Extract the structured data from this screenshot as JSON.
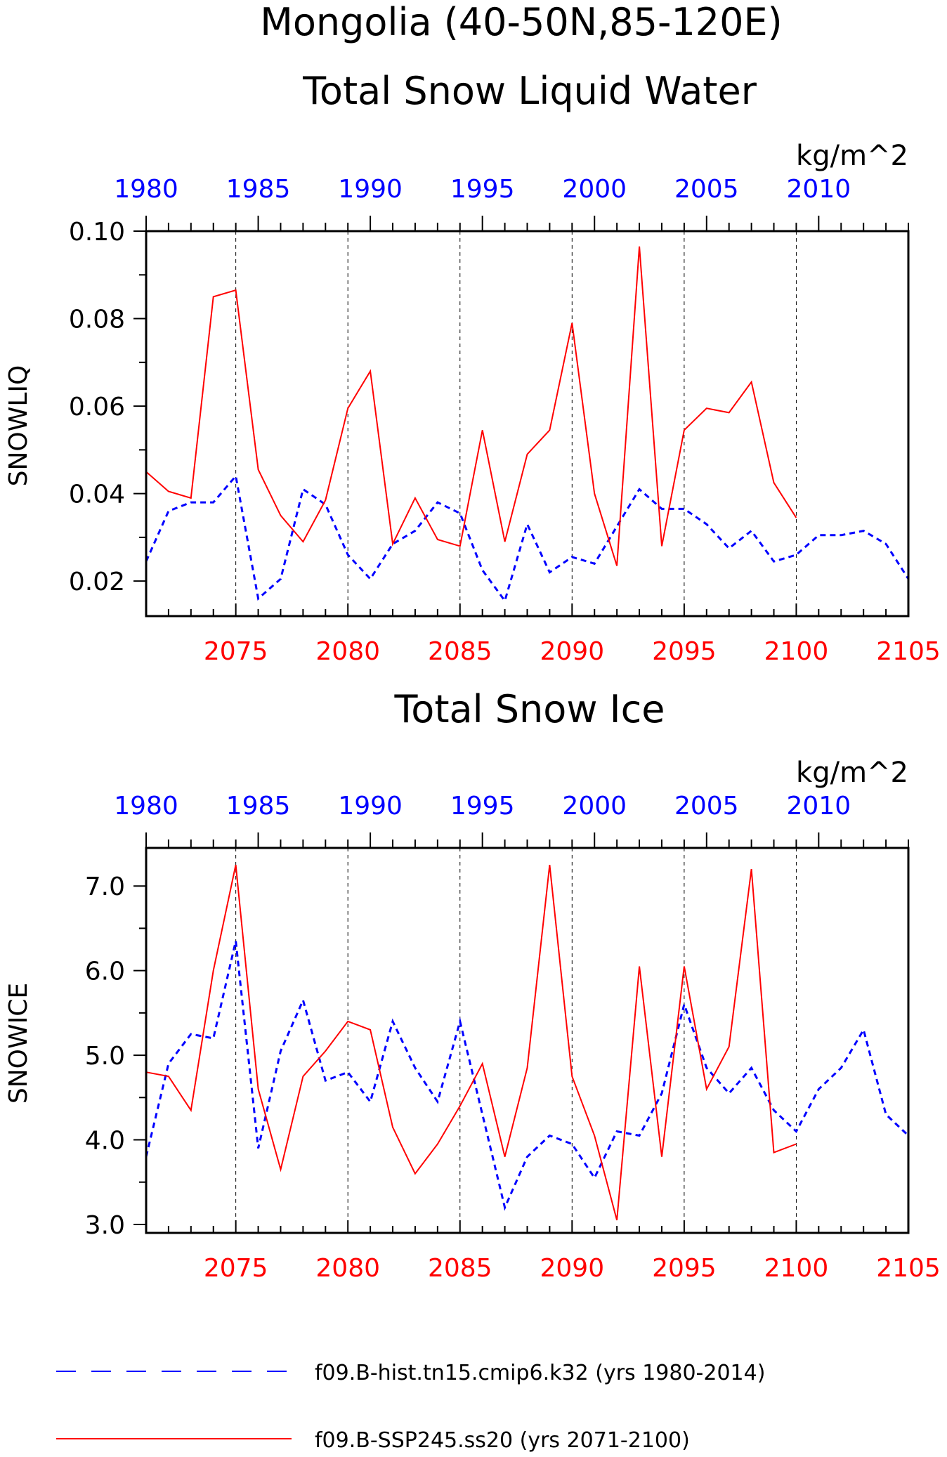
{
  "figure": {
    "title_line1": "Mongolia (40-50N,85-120E)",
    "colors": {
      "hist": "#0000ff",
      "ssp": "#ff0000",
      "axis": "#000000"
    }
  },
  "legend": {
    "items": [
      {
        "label": "f09.B-hist.tn15.cmip6.k32 (yrs 1980-2014)",
        "color": "#0000ff",
        "style": "dashed"
      },
      {
        "label": "f09.B-SSP245.ss20 (yrs 2071-2100)",
        "color": "#ff0000",
        "style": "solid"
      }
    ]
  },
  "chart_data": [
    {
      "type": "line",
      "title": "Total Snow Liquid Water",
      "ylabel": "SNOWLIQ",
      "units": "kg/m^2",
      "ylim": [
        0.012,
        0.1
      ],
      "yticks": [
        0.02,
        0.04,
        0.06,
        0.08,
        0.1
      ],
      "ytick_labels": [
        "0.02",
        "0.04",
        "0.06",
        "0.08",
        "0.10"
      ],
      "bottom_axis": {
        "range": [
          2071,
          2105
        ],
        "tick_labels": [
          "2075",
          "2080",
          "2085",
          "2090",
          "2095",
          "2100",
          "2105"
        ],
        "color": "#ff0000"
      },
      "top_axis": {
        "range": [
          1980,
          2014
        ],
        "tick_labels": [
          "1980",
          "1985",
          "1990",
          "1995",
          "2000",
          "2005",
          "2010"
        ],
        "color": "#0000ff"
      },
      "vgrid": [
        2075,
        2080,
        2085,
        2090,
        2095,
        2100
      ],
      "series": [
        {
          "name": "f09.B-hist.tn15.cmip6.k32 (yrs 1980-2014)",
          "axis": "top",
          "color": "#0000ff",
          "style": "dashed",
          "x": [
            1980,
            1981,
            1982,
            1983,
            1984,
            1985,
            1986,
            1987,
            1988,
            1989,
            1990,
            1991,
            1992,
            1993,
            1994,
            1995,
            1996,
            1997,
            1998,
            1999,
            2000,
            2001,
            2002,
            2003,
            2004,
            2005,
            2006,
            2007,
            2008,
            2009,
            2010,
            2011,
            2012,
            2013,
            2014
          ],
          "values": [
            0.0245,
            0.036,
            0.038,
            0.038,
            0.044,
            0.016,
            0.0205,
            0.041,
            0.0375,
            0.026,
            0.0205,
            0.0285,
            0.0315,
            0.038,
            0.0355,
            0.0225,
            0.0155,
            0.033,
            0.022,
            0.0255,
            0.024,
            0.0325,
            0.041,
            0.0365,
            0.0365,
            0.033,
            0.0275,
            0.0315,
            0.0245,
            0.026,
            0.0305,
            0.0305,
            0.0315,
            0.0285,
            0.0205
          ]
        },
        {
          "name": "f09.B-SSP245.ss20 (yrs 2071-2100)",
          "axis": "bottom",
          "color": "#ff0000",
          "style": "solid",
          "x": [
            2071,
            2072,
            2073,
            2074,
            2075,
            2076,
            2077,
            2078,
            2079,
            2080,
            2081,
            2082,
            2083,
            2084,
            2085,
            2086,
            2087,
            2088,
            2089,
            2090,
            2091,
            2092,
            2093,
            2094,
            2095,
            2096,
            2097,
            2098,
            2099,
            2100
          ],
          "values": [
            0.045,
            0.0405,
            0.039,
            0.085,
            0.0865,
            0.0455,
            0.035,
            0.029,
            0.0385,
            0.0595,
            0.068,
            0.0285,
            0.039,
            0.0295,
            0.028,
            0.0545,
            0.029,
            0.049,
            0.0545,
            0.079,
            0.04,
            0.0235,
            0.0965,
            0.028,
            0.0545,
            0.0595,
            0.0585,
            0.0655,
            0.0425,
            0.0345
          ]
        }
      ]
    },
    {
      "type": "line",
      "title": "Total Snow Ice",
      "ylabel": "SNOWICE",
      "units": "kg/m^2",
      "ylim": [
        2.9,
        7.45
      ],
      "yticks": [
        3.0,
        4.0,
        5.0,
        6.0,
        7.0
      ],
      "ytick_labels": [
        "3.0",
        "4.0",
        "5.0",
        "6.0",
        "7.0"
      ],
      "bottom_axis": {
        "range": [
          2071,
          2105
        ],
        "tick_labels": [
          "2075",
          "2080",
          "2085",
          "2090",
          "2095",
          "2100",
          "2105"
        ],
        "color": "#ff0000"
      },
      "top_axis": {
        "range": [
          1980,
          2014
        ],
        "tick_labels": [
          "1980",
          "1985",
          "1990",
          "1995",
          "2000",
          "2005",
          "2010"
        ],
        "color": "#0000ff"
      },
      "vgrid": [
        2075,
        2080,
        2085,
        2090,
        2095,
        2100
      ],
      "series": [
        {
          "name": "f09.B-hist.tn15.cmip6.k32 (yrs 1980-2014)",
          "axis": "top",
          "color": "#0000ff",
          "style": "dashed",
          "x": [
            1980,
            1981,
            1982,
            1983,
            1984,
            1985,
            1986,
            1987,
            1988,
            1989,
            1990,
            1991,
            1992,
            1993,
            1994,
            1995,
            1996,
            1997,
            1998,
            1999,
            2000,
            2001,
            2002,
            2003,
            2004,
            2005,
            2006,
            2007,
            2008,
            2009,
            2010,
            2011,
            2012,
            2013,
            2014
          ],
          "values": [
            3.8,
            4.9,
            5.25,
            5.2,
            6.35,
            3.9,
            5.05,
            5.65,
            4.7,
            4.8,
            4.45,
            5.4,
            4.85,
            4.45,
            5.4,
            4.3,
            3.2,
            3.8,
            4.05,
            3.95,
            3.55,
            4.1,
            4.05,
            4.55,
            5.6,
            4.85,
            4.55,
            4.85,
            4.35,
            4.1,
            4.6,
            4.85,
            5.3,
            4.3,
            4.05
          ]
        },
        {
          "name": "f09.B-SSP245.ss20 (yrs 2071-2100)",
          "axis": "bottom",
          "color": "#ff0000",
          "style": "solid",
          "x": [
            2071,
            2072,
            2073,
            2074,
            2075,
            2076,
            2077,
            2078,
            2079,
            2080,
            2081,
            2082,
            2083,
            2084,
            2085,
            2086,
            2087,
            2088,
            2089,
            2090,
            2091,
            2092,
            2093,
            2094,
            2095,
            2096,
            2097,
            2098,
            2099,
            2100
          ],
          "values": [
            4.8,
            4.75,
            4.35,
            6.0,
            7.25,
            4.6,
            3.65,
            4.75,
            5.05,
            5.4,
            5.3,
            4.15,
            3.6,
            3.95,
            4.4,
            4.9,
            3.8,
            4.85,
            7.25,
            4.75,
            4.05,
            3.05,
            6.05,
            3.8,
            6.05,
            4.6,
            5.1,
            7.2,
            3.85,
            3.95
          ]
        }
      ]
    }
  ]
}
